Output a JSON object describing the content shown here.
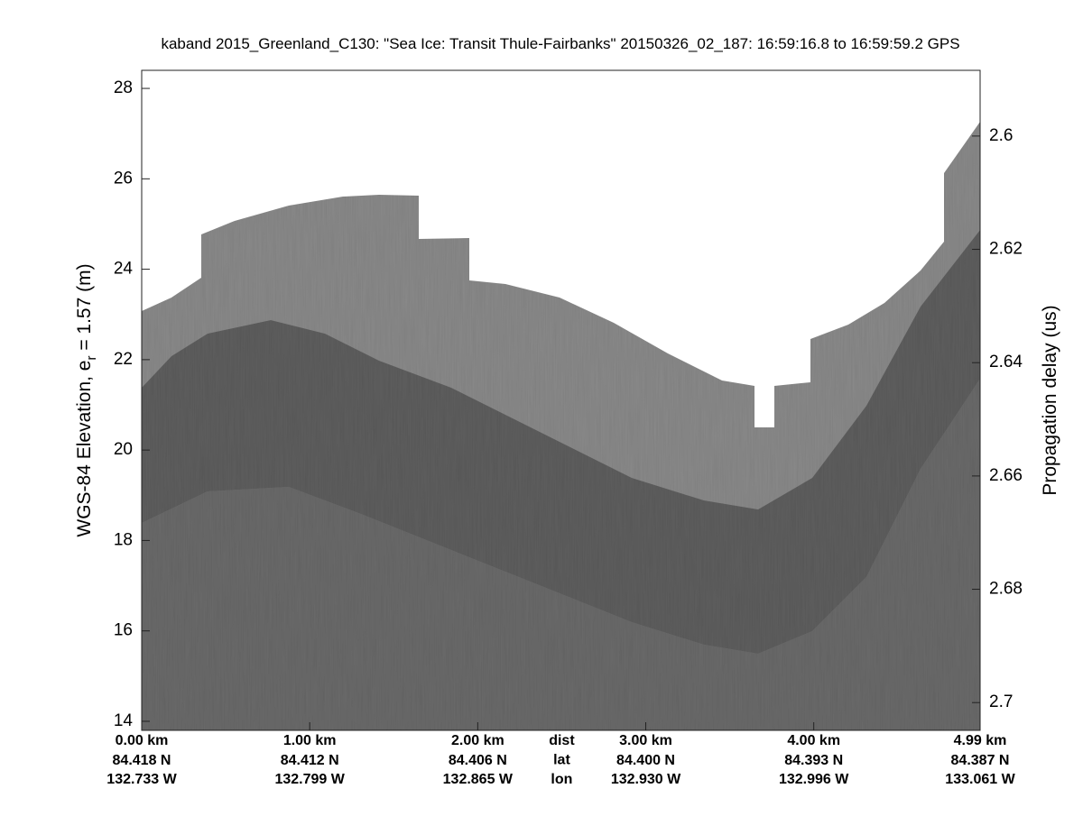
{
  "chart_data": {
    "type": "echogram",
    "title": "kaband 2015_Greenland_C130: \"Sea Ice: Transit Thule-Fairbanks\"  20150326_02_187: 16:59:16.8 to 16:59:59.2 GPS",
    "y_label": [
      "WGS-84 Elevation, e",
      "r",
      " = 1.57 (m)"
    ],
    "y2_label": "Propagation delay (us)",
    "ylim": [
      13.8,
      28.4
    ],
    "yticks": [
      14,
      16,
      18,
      20,
      22,
      24,
      26,
      28
    ],
    "y2lim": [
      2.7049,
      2.5884
    ],
    "y2ticks": [
      2.6,
      2.62,
      2.64,
      2.66,
      2.68,
      2.7
    ],
    "xlim": [
      0,
      4.99
    ],
    "xticks": [
      {
        "value": 0,
        "label": "0.00 km"
      },
      {
        "value": 1,
        "label": "1.00 km"
      },
      {
        "value": 2,
        "label": "2.00 km"
      },
      {
        "value": 3,
        "label": "3.00 km"
      },
      {
        "value": 4,
        "label": "4.00 km"
      },
      {
        "value": 4.99,
        "label": "4.99 km"
      }
    ],
    "row_names": [
      "dist",
      "lat",
      "lon"
    ],
    "lat_labels": [
      "84.418 N",
      "84.412 N",
      "84.406 N",
      "84.400 N",
      "84.393 N",
      "84.387 N"
    ],
    "lon_labels": [
      "132.733 W",
      "132.799 W",
      "132.865 W",
      "132.930 W",
      "132.996 W",
      "133.061 W"
    ]
  }
}
